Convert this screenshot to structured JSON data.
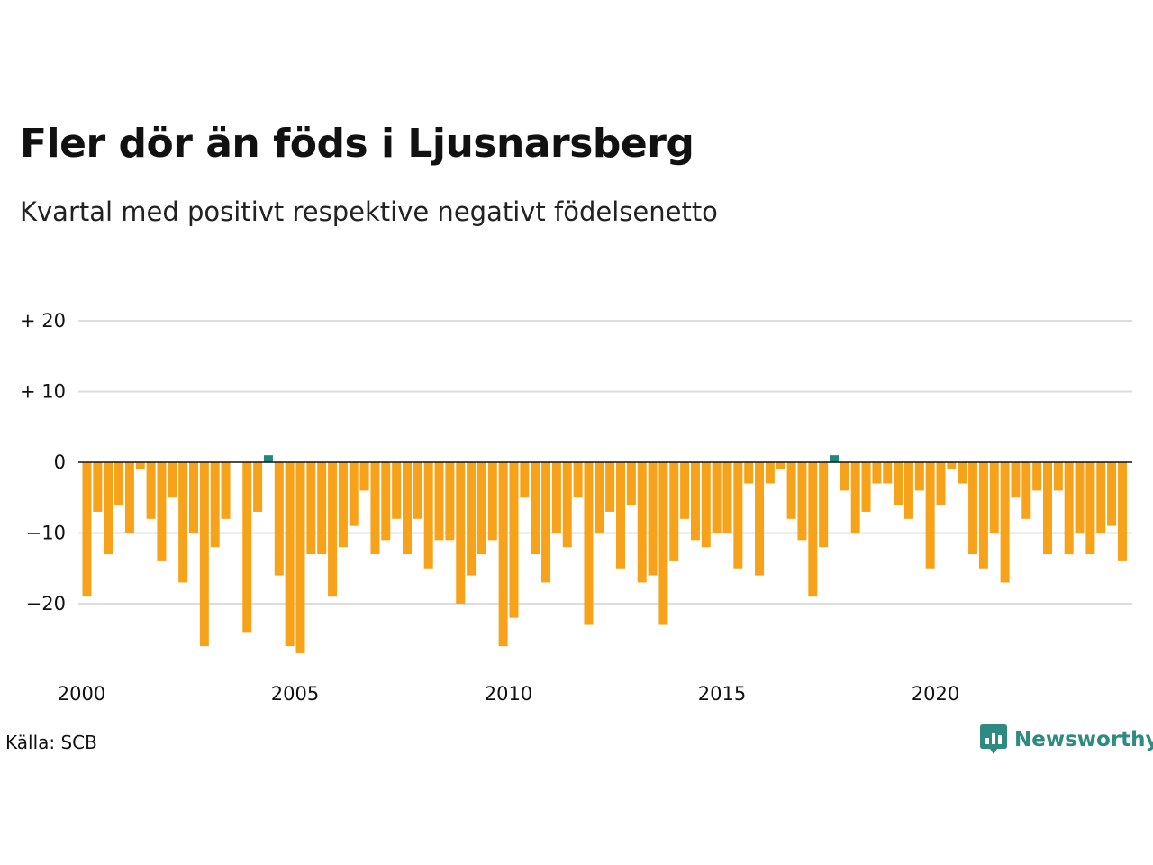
{
  "title": "Fler dör än föds i Ljusnarsberg",
  "subtitle": "Kvartal med positivt respektive negativt födelsenetto",
  "source": "Källa: SCB",
  "brand": {
    "name": "Newsworthy",
    "icon": "newsworthy-logo-icon"
  },
  "colors": {
    "negative": "#f7a21b",
    "positive": "#1d8a80",
    "grid": "#dddddd",
    "zero": "#111111"
  },
  "chart_data": {
    "type": "bar",
    "x_start": 2000,
    "quarters_per_year": 4,
    "values": [
      -19,
      -7,
      -13,
      -6,
      -10,
      -1,
      -8,
      -14,
      -5,
      -17,
      -10,
      -26,
      -12,
      -8,
      0,
      -24,
      -7,
      1,
      -16,
      -26,
      -27,
      -13,
      -13,
      -19,
      -12,
      -9,
      -4,
      -13,
      -11,
      -8,
      -13,
      -8,
      -15,
      -11,
      -11,
      -20,
      -16,
      -13,
      -11,
      -26,
      -22,
      -5,
      -13,
      -17,
      -10,
      -12,
      -5,
      -23,
      -10,
      -7,
      -15,
      -6,
      -17,
      -16,
      -23,
      -14,
      -8,
      -11,
      -12,
      -10,
      -10,
      -15,
      -3,
      -16,
      -3,
      -1,
      -8,
      -11,
      -19,
      -12,
      1,
      -4,
      -10,
      -7,
      -3,
      -3,
      -6,
      -8,
      -4,
      -15,
      -6,
      -1,
      -3,
      -13,
      -15,
      -10,
      -17,
      -5,
      -8,
      -4,
      -13,
      -4,
      -13,
      -10,
      -13,
      -10,
      -9,
      -14
    ],
    "ylim": [
      -29,
      21
    ],
    "y_ticks": [
      {
        "value": 20,
        "label": "+ 20"
      },
      {
        "value": 10,
        "label": "+ 10"
      },
      {
        "value": 0,
        "label": "0"
      },
      {
        "value": -10,
        "label": "−10"
      },
      {
        "value": -20,
        "label": "−20"
      }
    ],
    "x_ticks": [
      "2000",
      "2005",
      "2010",
      "2015",
      "2020"
    ],
    "grid": true,
    "legend": false
  }
}
